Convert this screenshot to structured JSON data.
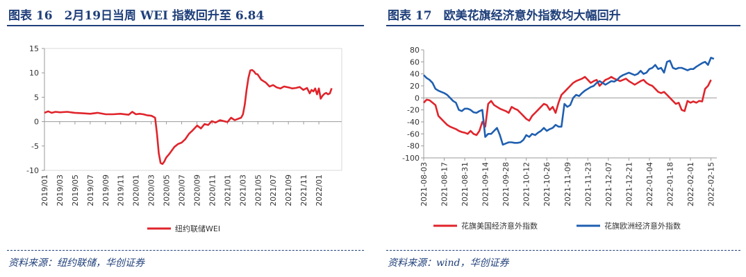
{
  "left": {
    "title": "图表 16　2月19日当周 WEI 指数回升至 6.84",
    "source": "资料来源：纽约联储，华创证券"
  },
  "right": {
    "title": "图表 17　欧美花旗经济意外指数均大幅回升",
    "source": "资料来源：wind，华创证券"
  },
  "chart_data": [
    {
      "type": "line",
      "title": "2月19日当周 WEI 指数回升至 6.84",
      "ylim": [
        -10,
        15
      ],
      "yticks": [
        -10,
        -5,
        0,
        5,
        10,
        15
      ],
      "xlim": [
        2019.0,
        2022.25
      ],
      "xtick_labels": [
        "2019/01",
        "2019/03",
        "2019/05",
        "2019/07",
        "2019/09",
        "2019/11",
        "2020/01",
        "2020/03",
        "2020/05",
        "2020/07",
        "2020/09",
        "2020/11",
        "2021/01",
        "2021/03",
        "2021/05",
        "2021/07",
        "2021/09",
        "2021/11",
        "2022/01"
      ],
      "grid": false,
      "legend_position": "bottom",
      "series": [
        {
          "name": "纽约联储WEI",
          "color": "#e0242b",
          "x": [
            2019.0,
            2019.04,
            2019.08,
            2019.12,
            2019.17,
            2019.25,
            2019.33,
            2019.42,
            2019.5,
            2019.58,
            2019.67,
            2019.75,
            2019.83,
            2019.92,
            2019.96,
            2020.0,
            2020.04,
            2020.08,
            2020.12,
            2020.17,
            2020.21,
            2020.23,
            2020.25,
            2020.27,
            2020.29,
            2020.31,
            2020.33,
            2020.37,
            2020.42,
            2020.46,
            2020.5,
            2020.54,
            2020.58,
            2020.62,
            2020.67,
            2020.71,
            2020.75,
            2020.79,
            2020.83,
            2020.87,
            2020.92,
            2020.96,
            2021.0,
            2021.04,
            2021.08,
            2021.12,
            2021.15,
            2021.17,
            2021.19,
            2021.21,
            2021.23,
            2021.25,
            2021.27,
            2021.29,
            2021.31,
            2021.33,
            2021.37,
            2021.42,
            2021.46,
            2021.5,
            2021.54,
            2021.58,
            2021.62,
            2021.67,
            2021.71,
            2021.75,
            2021.79,
            2021.83,
            2021.87,
            2021.9,
            2021.92,
            2021.94,
            2021.96,
            2021.98,
            2022.0,
            2022.02,
            2022.04,
            2022.06,
            2022.08,
            2022.1,
            2022.12,
            2022.14
          ],
          "values": [
            1.8,
            2.1,
            1.8,
            2.0,
            1.9,
            2.0,
            1.8,
            1.7,
            1.6,
            1.8,
            1.5,
            1.5,
            1.6,
            1.4,
            2.0,
            1.5,
            1.6,
            1.5,
            1.3,
            1.2,
            0.8,
            -2.5,
            -6.5,
            -8.5,
            -8.7,
            -8.2,
            -7.4,
            -6.5,
            -5.2,
            -4.6,
            -4.3,
            -3.6,
            -2.5,
            -1.8,
            -0.8,
            -1.4,
            -0.5,
            -0.7,
            0.1,
            -0.2,
            0.3,
            0.1,
            -0.1,
            0.8,
            0.3,
            0.6,
            0.8,
            1.5,
            3.5,
            6.5,
            9.0,
            10.5,
            10.6,
            10.3,
            9.8,
            9.7,
            8.6,
            8.0,
            7.2,
            7.5,
            7.0,
            6.8,
            7.2,
            7.0,
            6.8,
            6.9,
            7.1,
            6.5,
            6.9,
            5.8,
            6.5,
            6.2,
            6.8,
            5.6,
            6.8,
            4.7,
            5.3,
            5.7,
            5.9,
            5.6,
            5.8,
            6.84
          ]
        }
      ]
    },
    {
      "type": "line",
      "title": "欧美花旗经济意外指数均大幅回升",
      "ylim": [
        -100,
        80
      ],
      "yticks": [
        -100,
        -80,
        -60,
        -40,
        -20,
        0,
        20,
        40,
        60,
        80
      ],
      "x_dates": [
        "2021-08-03",
        "2021-08-17",
        "2021-08-31",
        "2021-09-14",
        "2021-09-28",
        "2021-10-12",
        "2021-10-26",
        "2021-11-09",
        "2021-11-23",
        "2021-12-07",
        "2021-12-21",
        "2022-01-04",
        "2022-01-18",
        "2022-02-01",
        "2022-02-15"
      ],
      "grid": false,
      "legend_position": "bottom",
      "series": [
        {
          "name": "花旗美国经济意外指数",
          "color": "#e0242b",
          "x": [
            0,
            2,
            4,
            6,
            8,
            10,
            12,
            14,
            16,
            18,
            20,
            22,
            24,
            26,
            28,
            30,
            32,
            34,
            36,
            38,
            40,
            42,
            44,
            46,
            48,
            50,
            52,
            54,
            56,
            58,
            60,
            62,
            64,
            66,
            68,
            70,
            72,
            74,
            76,
            78,
            80,
            82,
            84,
            86,
            88,
            90,
            92,
            94,
            96,
            98,
            100,
            102,
            104,
            106,
            108,
            110,
            112,
            114,
            116,
            118,
            120,
            122,
            124,
            126,
            128,
            130,
            132,
            134,
            136,
            138,
            140,
            142,
            144,
            146,
            148,
            150,
            152,
            154,
            156,
            158,
            160,
            162,
            164,
            166,
            168,
            170,
            172,
            174,
            176,
            178,
            180,
            182,
            184,
            186,
            188,
            190,
            192,
            194,
            196
          ],
          "values": [
            -8,
            -3,
            -4,
            -8,
            -12,
            -30,
            -35,
            -40,
            -45,
            -48,
            -50,
            -52,
            -55,
            -57,
            -58,
            -60,
            -55,
            -60,
            -62,
            -55,
            -40,
            -48,
            -10,
            -5,
            -12,
            -15,
            -18,
            -20,
            -22,
            -25,
            -15,
            -18,
            -20,
            -25,
            -30,
            -35,
            -38,
            -30,
            -25,
            -20,
            -15,
            -10,
            -12,
            -20,
            -15,
            -25,
            -8,
            5,
            10,
            15,
            20,
            25,
            28,
            30,
            32,
            35,
            30,
            25,
            28,
            30,
            20,
            25,
            30,
            32,
            35,
            32,
            30,
            28,
            30,
            32,
            28,
            25,
            22,
            25,
            28,
            30,
            25,
            22,
            20,
            15,
            10,
            8,
            10,
            5,
            0,
            -5,
            -10,
            -8,
            -20,
            -22,
            -5,
            -8,
            -6,
            -8,
            -5,
            -6,
            15,
            20,
            30
          ],
          "xmax": 200
        },
        {
          "name": "花旗欧洲经济意外指数",
          "color": "#1f5fb0",
          "x": [
            0,
            2,
            4,
            6,
            8,
            10,
            12,
            14,
            16,
            18,
            20,
            22,
            24,
            26,
            28,
            30,
            32,
            34,
            36,
            38,
            40,
            42,
            44,
            46,
            48,
            50,
            52,
            54,
            56,
            58,
            60,
            62,
            64,
            66,
            68,
            70,
            72,
            74,
            76,
            78,
            80,
            82,
            84,
            86,
            88,
            90,
            92,
            94,
            96,
            98,
            100,
            102,
            104,
            106,
            108,
            110,
            112,
            114,
            116,
            118,
            120,
            122,
            124,
            126,
            128,
            130,
            132,
            134,
            136,
            138,
            140,
            142,
            144,
            146,
            148,
            150,
            152,
            154,
            156,
            158,
            160,
            162,
            164,
            166,
            168,
            170,
            172,
            174,
            176,
            178,
            180,
            182,
            184,
            186,
            188,
            190,
            192,
            194,
            196,
            198
          ],
          "values": [
            38,
            33,
            30,
            25,
            15,
            12,
            10,
            8,
            5,
            0,
            -5,
            -8,
            -20,
            -22,
            -18,
            -18,
            -20,
            -24,
            -25,
            -22,
            -20,
            -65,
            -60,
            -60,
            -55,
            -50,
            -62,
            -78,
            -76,
            -74,
            -74,
            -75,
            -75,
            -74,
            -70,
            -62,
            -65,
            -60,
            -62,
            -58,
            -55,
            -50,
            -55,
            -52,
            -50,
            -45,
            -48,
            -48,
            -10,
            -15,
            -12,
            0,
            5,
            3,
            8,
            12,
            15,
            18,
            20,
            25,
            28,
            25,
            22,
            25,
            28,
            27,
            30,
            35,
            38,
            40,
            42,
            40,
            38,
            40,
            45,
            40,
            42,
            48,
            50,
            55,
            48,
            50,
            42,
            60,
            62,
            50,
            48,
            50,
            50,
            48,
            46,
            48,
            48,
            52,
            55,
            58,
            60,
            55,
            67,
            65
          ],
          "xmax": 200
        }
      ]
    }
  ],
  "legends": {
    "left": [
      "纽约联储WEI"
    ],
    "right": [
      "花旗美国经济意外指数",
      "花旗欧洲经济意外指数"
    ]
  },
  "colors": {
    "title": "#1f3f7a",
    "red": "#e0242b",
    "blue": "#1f5fb0"
  }
}
